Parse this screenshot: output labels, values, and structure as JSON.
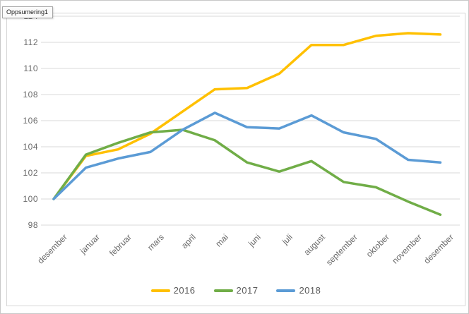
{
  "window": {
    "tooltip": "Oppsumering1"
  },
  "chart_data": {
    "type": "line",
    "categories": [
      "desember",
      "januar",
      "februar",
      "mars",
      "april",
      "mai",
      "juni",
      "juli",
      "august",
      "september",
      "oktober",
      "november",
      "desember"
    ],
    "series": [
      {
        "name": "2016",
        "color": "#FFC000",
        "values": [
          100,
          103.3,
          103.8,
          105.0,
          106.7,
          108.4,
          108.5,
          109.6,
          111.8,
          111.8,
          112.5,
          112.7,
          112.6
        ]
      },
      {
        "name": "2017",
        "color": "#70AD47",
        "values": [
          100,
          103.4,
          104.3,
          105.1,
          105.3,
          104.5,
          102.8,
          102.1,
          102.9,
          101.3,
          100.9,
          99.8,
          98.8
        ]
      },
      {
        "name": "2018",
        "color": "#5B9BD5",
        "values": [
          100,
          102.4,
          103.1,
          103.6,
          105.3,
          106.6,
          105.5,
          105.4,
          106.4,
          105.1,
          104.6,
          103.0,
          102.8
        ]
      }
    ],
    "title": "",
    "xlabel": "",
    "ylabel": "",
    "ylim": [
      98,
      114
    ],
    "ytick_step": 2,
    "grid": true,
    "legend_position": "bottom"
  },
  "colors": {
    "gridline": "#d9d9d9",
    "axis_text": "#6a6a6a",
    "chart_border": "#d6d6d6",
    "page_border": "#c8c8c8"
  }
}
